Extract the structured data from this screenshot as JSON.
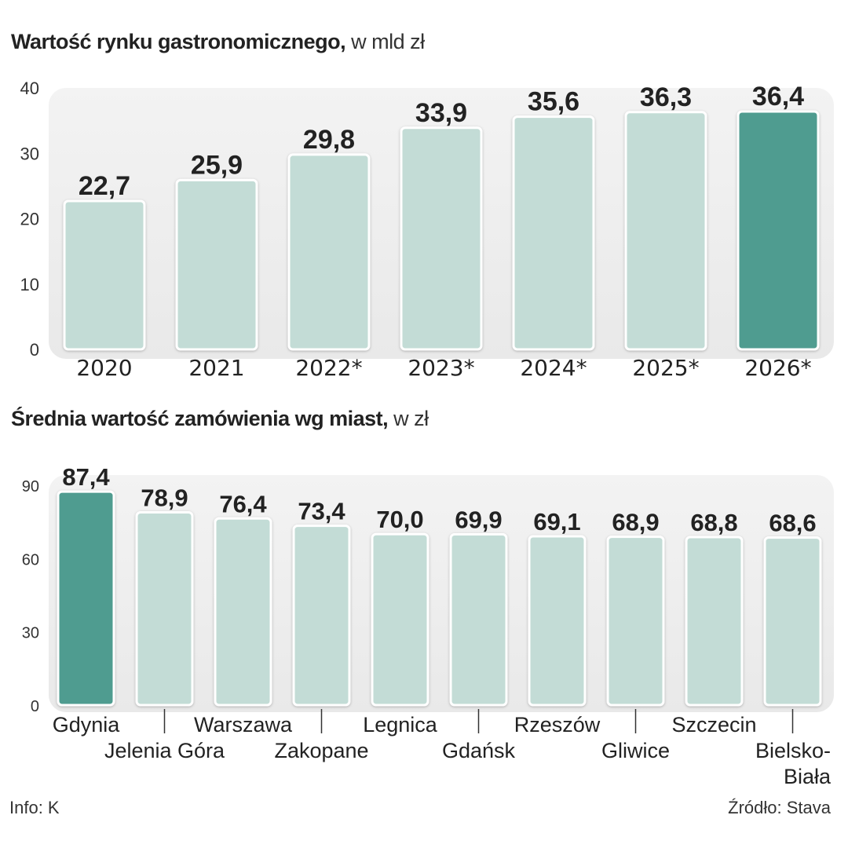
{
  "chart_data": [
    {
      "type": "bar",
      "title": "Wartość rynku gastronomicznego,",
      "unit": "w mld zł",
      "categories": [
        "2020",
        "2021",
        "2022*",
        "2023*",
        "2024*",
        "2025*",
        "2026*"
      ],
      "values": [
        22.7,
        25.9,
        29.8,
        33.9,
        35.6,
        36.3,
        36.4
      ],
      "value_labels": [
        "22,7",
        "25,9",
        "29,8",
        "33,9",
        "35,6",
        "36,3",
        "36,4"
      ],
      "highlight_index": 6,
      "yticks": [
        "0",
        "10",
        "20",
        "30",
        "40"
      ],
      "ylim": [
        0,
        40
      ],
      "xlabel": "",
      "ylabel": ""
    },
    {
      "type": "bar",
      "title": "Średnia wartość zamówienia wg miast,",
      "unit": "w zł",
      "categories": [
        "Gdynia",
        "Jelenia Góra",
        "Warszawa",
        "Zakopane",
        "Legnica",
        "Gdańsk",
        "Rzeszów",
        "Gliwice",
        "Szczecin",
        "Bielsko-Biała"
      ],
      "category_lines": [
        [
          "Gdynia"
        ],
        [
          "Jelenia Góra"
        ],
        [
          "Warszawa"
        ],
        [
          "Zakopane"
        ],
        [
          "Legnica"
        ],
        [
          "Gdańsk"
        ],
        [
          "Rzeszów"
        ],
        [
          "Gliwice"
        ],
        [
          "Szczecin"
        ],
        [
          "Bielsko-",
          "Biała"
        ]
      ],
      "values": [
        87.4,
        78.9,
        76.4,
        73.4,
        70.0,
        69.9,
        69.1,
        68.9,
        68.8,
        68.6
      ],
      "value_labels": [
        "87,4",
        "78,9",
        "76,4",
        "73,4",
        "70,0",
        "69,9",
        "69,1",
        "68,9",
        "68,8",
        "68,6"
      ],
      "highlight_index": 0,
      "yticks": [
        "0",
        "30",
        "60",
        "90"
      ],
      "ylim": [
        0,
        90
      ],
      "xlabel": "",
      "ylabel": ""
    }
  ],
  "footer": {
    "info": "Info: K",
    "source": "Źródło: Stava"
  },
  "colors": {
    "bar": "#c3dcd6",
    "highlight": "#4f9c90",
    "panel": "#efefef",
    "text": "#222222"
  }
}
